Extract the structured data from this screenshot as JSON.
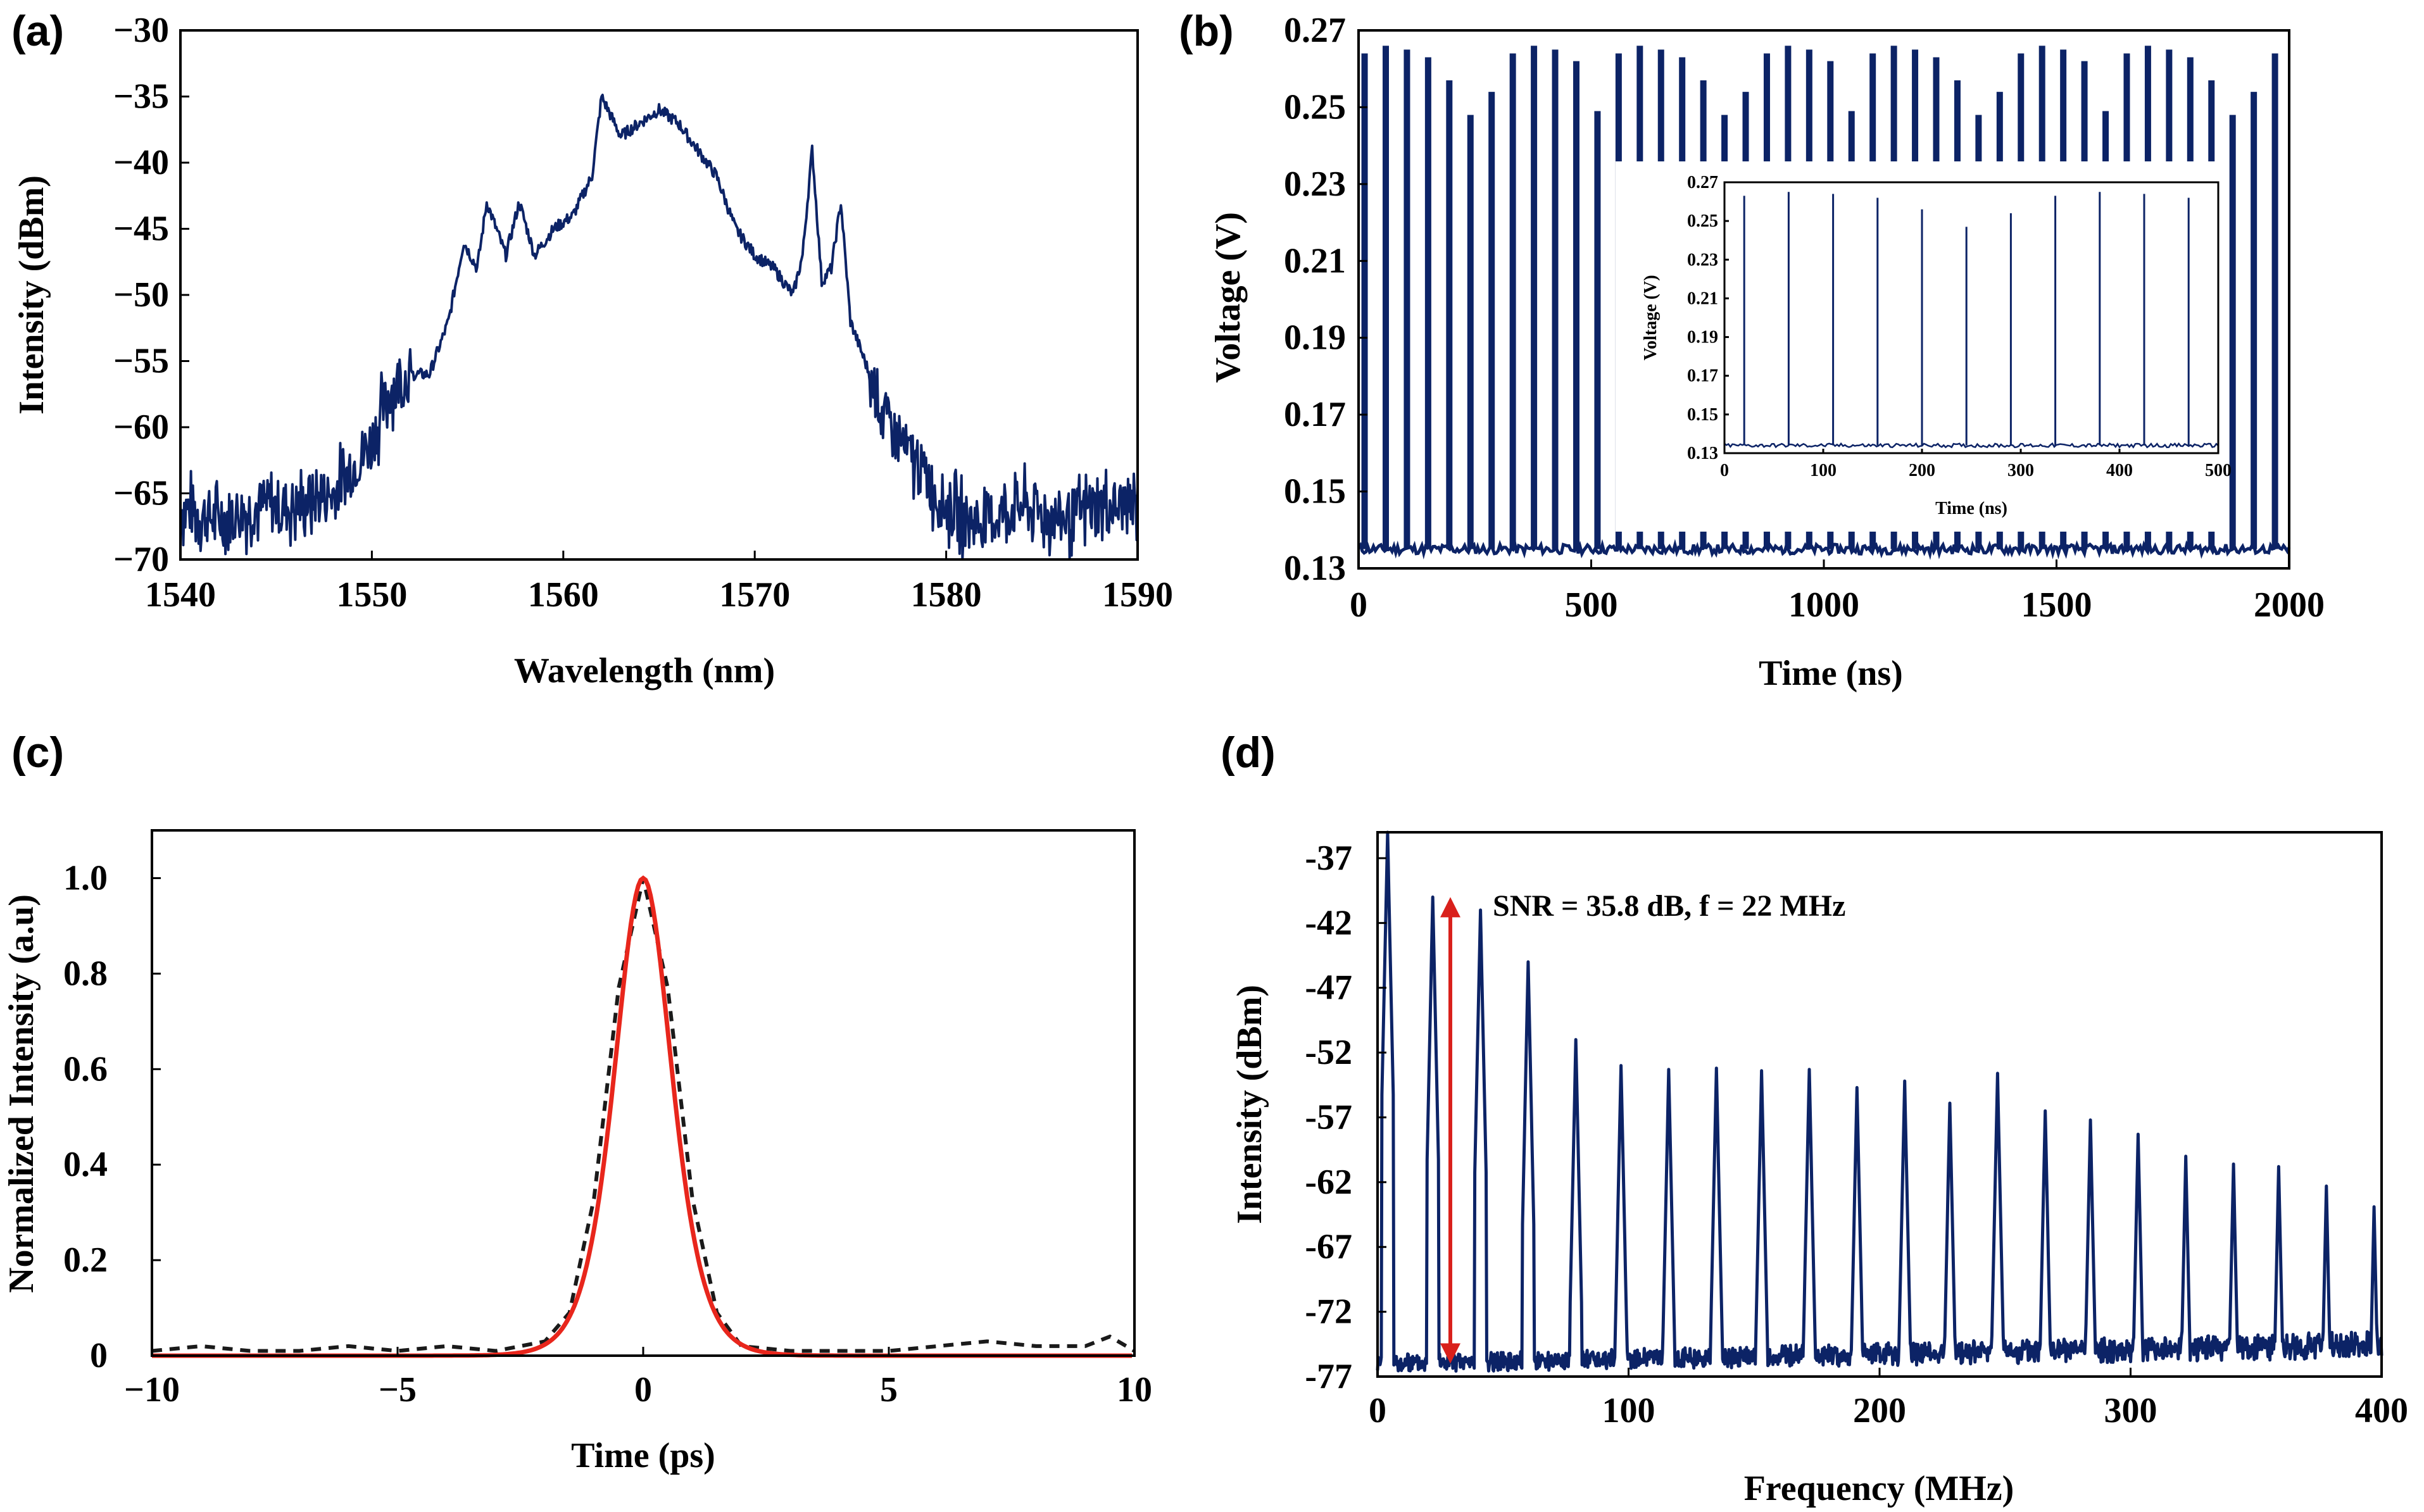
{
  "colors": {
    "series": "#0c2366",
    "fit": "#e8261c",
    "data_dash": "#1a1a1a",
    "arrow": "#d9201b",
    "axis": "#000000"
  },
  "chart_data": [
    {
      "label": "(a)",
      "type": "line",
      "xlabel": "Wavelength (nm)",
      "ylabel": "Intensity (dBm)",
      "xlim": [
        1540,
        1590
      ],
      "ylim": [
        -70,
        -30
      ],
      "xticks": [
        "1540",
        "1550",
        "1560",
        "1570",
        "1580",
        "1590"
      ],
      "yticks": [
        "−30",
        "−35",
        "−40",
        "−45",
        "−50",
        "−55",
        "−60",
        "−65",
        "−70"
      ],
      "x": [
        1540,
        1542,
        1544,
        1546,
        1548,
        1549,
        1550,
        1551,
        1552,
        1553,
        1554,
        1554.8,
        1555.5,
        1556,
        1557,
        1557.7,
        1558.5,
        1559.5,
        1560.5,
        1561.5,
        1562,
        1563,
        1565,
        1566,
        1567,
        1568,
        1569,
        1570,
        1571,
        1572,
        1572.5,
        1573,
        1573.5,
        1574,
        1574.5,
        1575,
        1576,
        1577,
        1578,
        1579,
        1580,
        1581,
        1582,
        1584,
        1586,
        1588,
        1590
      ],
      "y": [
        -66,
        -67,
        -66,
        -66,
        -65,
        -63,
        -61,
        -57,
        -56,
        -56,
        -52,
        -46,
        -48,
        -43,
        -47,
        -43,
        -47,
        -45,
        -44,
        -41,
        -35,
        -38,
        -36,
        -37,
        -39,
        -41,
        -45,
        -47,
        -48,
        -50,
        -47,
        -39,
        -49,
        -48,
        -43,
        -52,
        -56,
        -60,
        -62,
        -64,
        -66,
        -67,
        -67,
        -66,
        -67,
        -66,
        -66
      ]
    },
    {
      "label": "(b)",
      "type": "line",
      "xlabel": "Time (ns)",
      "ylabel": "Voltage (V)",
      "xlim": [
        0,
        2000
      ],
      "ylim": [
        0.13,
        0.27
      ],
      "xticks": [
        "0",
        "500",
        "1000",
        "1500",
        "2000"
      ],
      "yticks": [
        "0.27",
        "0.25",
        "0.23",
        "0.21",
        "0.19",
        "0.17",
        "0.15",
        "0.13"
      ],
      "baseline": 0.135,
      "pulse_period_ns": 45.5,
      "pulse_peaks": [
        0.264,
        0.266,
        0.265,
        0.263,
        0.257,
        0.248,
        0.254,
        0.264,
        0.266,
        0.265,
        0.262,
        0.249,
        0.264,
        0.266,
        0.265,
        0.263,
        0.257,
        0.248,
        0.254,
        0.264,
        0.266,
        0.265,
        0.262,
        0.249,
        0.264,
        0.266,
        0.265,
        0.263,
        0.257,
        0.248,
        0.254,
        0.264,
        0.266,
        0.265,
        0.262,
        0.249,
        0.264,
        0.266,
        0.265,
        0.263,
        0.257,
        0.248,
        0.254,
        0.264,
        0.266
      ],
      "inset": {
        "xlabel": "Time (ns)",
        "ylabel": "Voltage (V)",
        "xlim": [
          0,
          500
        ],
        "ylim": [
          0.13,
          0.27
        ],
        "xticks": [
          "0",
          "100",
          "200",
          "300",
          "400",
          "500"
        ],
        "yticks": [
          "0.27",
          "0.25",
          "0.23",
          "0.21",
          "0.19",
          "0.17",
          "0.15",
          "0.13"
        ],
        "pulse_times": [
          20,
          65,
          110,
          155,
          200,
          245,
          290,
          335,
          380,
          425,
          470
        ],
        "pulse_peaks": [
          0.263,
          0.265,
          0.264,
          0.262,
          0.256,
          0.247,
          0.254,
          0.263,
          0.265,
          0.264,
          0.262
        ]
      }
    },
    {
      "label": "(c)",
      "type": "line",
      "xlabel": "Time (ps)",
      "ylabel": "Normalized Intensity (a.u)",
      "xlim": [
        -10,
        10
      ],
      "ylim": [
        0,
        1.1
      ],
      "xticks": [
        "−10",
        "−5",
        "0",
        "5",
        "10"
      ],
      "yticks": [
        "0",
        "0.2",
        "0.4",
        "0.6",
        "0.8",
        "1.0"
      ],
      "series": [
        {
          "style": "dashed-black",
          "x": [
            -10,
            -9,
            -8,
            -7,
            -6,
            -5,
            -4,
            -3,
            -2,
            -1.5,
            -1,
            -0.5,
            0,
            0.5,
            1,
            1.5,
            2,
            3,
            4,
            5,
            6,
            7,
            8,
            9,
            9.5,
            10
          ],
          "y": [
            0.01,
            0.02,
            0.01,
            0.01,
            0.02,
            0.01,
            0.02,
            0.01,
            0.03,
            0.09,
            0.33,
            0.77,
            1.0,
            0.77,
            0.33,
            0.09,
            0.02,
            0.01,
            0.01,
            0.01,
            0.02,
            0.03,
            0.02,
            0.02,
            0.04,
            0.01
          ]
        },
        {
          "style": "solid-red",
          "x": [
            -10,
            -3,
            -2.5,
            -2,
            -1.5,
            -1,
            -0.5,
            0,
            0.5,
            1,
            1.5,
            2,
            2.5,
            3,
            10
          ],
          "y": [
            0,
            0.005,
            0.02,
            0.06,
            0.16,
            0.38,
            0.75,
            1.0,
            0.75,
            0.38,
            0.16,
            0.06,
            0.02,
            0.005,
            0
          ]
        }
      ]
    },
    {
      "label": "(d)",
      "type": "line",
      "xlabel": "Frequency (MHz)",
      "ylabel": "Intensity (dBm)",
      "xlim": [
        0,
        400
      ],
      "ylim": [
        -77,
        -35
      ],
      "xticks": [
        "0",
        "100",
        "200",
        "300",
        "400"
      ],
      "yticks": [
        "-37",
        "-42",
        "-47",
        "-52",
        "-57",
        "-62",
        "-67",
        "-72",
        "-77"
      ],
      "annotation": "SNR = 35.8 dB, f = 22 MHz",
      "snr_arrow": {
        "x": 29,
        "y_top": -40,
        "y_bottom": -76
      },
      "noise_floor": -76,
      "peaks": {
        "f": [
          4,
          22,
          41,
          60,
          79,
          97,
          116,
          135,
          153,
          172,
          191,
          210,
          228,
          247,
          266,
          284,
          303,
          322,
          341,
          359,
          378,
          397
        ],
        "dbm": [
          -35,
          -40,
          -41,
          -45,
          -51,
          -53,
          -53.3,
          -53.2,
          -53.4,
          -53.3,
          -54.7,
          -54.2,
          -55.9,
          -53.6,
          -56.5,
          -57.2,
          -58.3,
          -60,
          -60.6,
          -60.8,
          -62.3,
          -63.9
        ]
      }
    }
  ]
}
